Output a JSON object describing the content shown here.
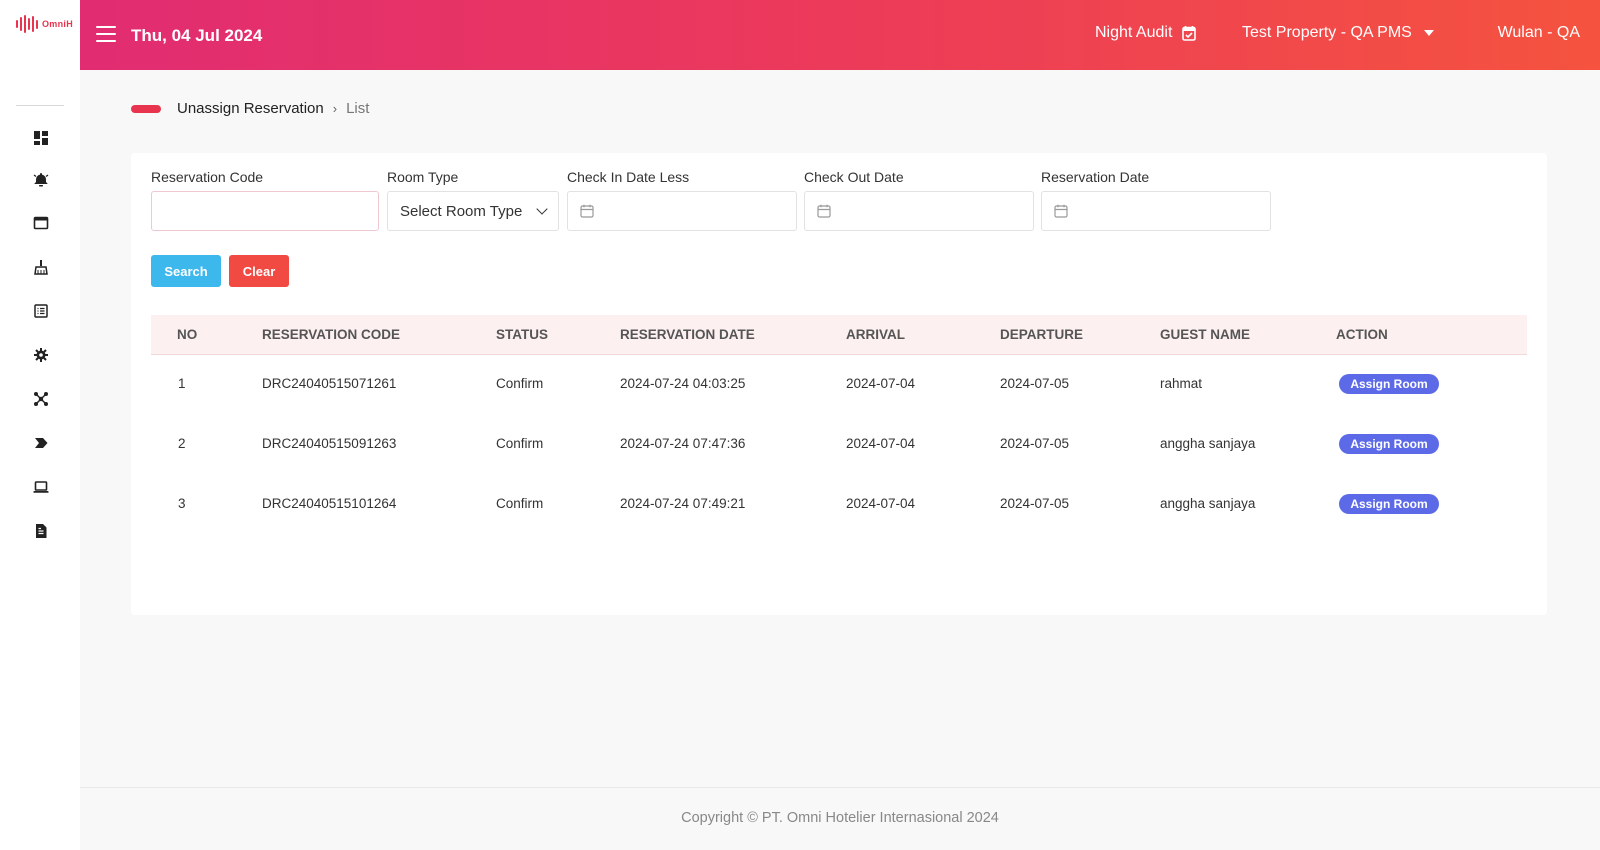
{
  "app": {
    "logo_text": "OmniH"
  },
  "sidebar": {
    "icons": [
      "dashboard-icon",
      "bell-concierge-icon",
      "window-icon",
      "housekeeping-icon",
      "list-icon",
      "settings-icon",
      "network-icon",
      "tag-icon",
      "laptop-icon",
      "report-icon"
    ]
  },
  "header": {
    "date": "Thu, 04 Jul 2024",
    "night_audit": "Night Audit",
    "property": "Test Property - QA PMS",
    "user": "Wulan - QA"
  },
  "breadcrumb": {
    "main": "Unassign Reservation",
    "separator": "›",
    "sub": "List"
  },
  "filters": {
    "reservation_code": {
      "label": "Reservation Code",
      "value": ""
    },
    "room_type": {
      "label": "Room Type",
      "selected": "Select Room Type"
    },
    "check_in": {
      "label": "Check In Date Less",
      "value": ""
    },
    "check_out": {
      "label": "Check Out Date",
      "value": ""
    },
    "reservation_date": {
      "label": "Reservation Date",
      "value": ""
    }
  },
  "buttons": {
    "search": "Search",
    "clear": "Clear"
  },
  "table": {
    "columns": [
      "NO",
      "RESERVATION CODE",
      "STATUS",
      "RESERVATION DATE",
      "ARRIVAL",
      "DEPARTURE",
      "GUEST NAME",
      "ACTION"
    ],
    "rows": [
      {
        "no": "1",
        "code": "DRC24040515071261",
        "status": "Confirm",
        "reservation_date": "2024-07-24 04:03:25",
        "arrival": "2024-07-04",
        "departure": "2024-07-05",
        "guest": "rahmat",
        "action": "Assign Room"
      },
      {
        "no": "2",
        "code": "DRC24040515091263",
        "status": "Confirm",
        "reservation_date": "2024-07-24 07:47:36",
        "arrival": "2024-07-04",
        "departure": "2024-07-05",
        "guest": "anggha sanjaya",
        "action": "Assign Room"
      },
      {
        "no": "3",
        "code": "DRC24040515101264",
        "status": "Confirm",
        "reservation_date": "2024-07-24 07:49:21",
        "arrival": "2024-07-04",
        "departure": "2024-07-05",
        "guest": "anggha sanjaya",
        "action": "Assign Room"
      }
    ]
  },
  "footer": {
    "copyright": "Copyright © PT. Omni Hotelier Internasional 2024"
  },
  "colors": {
    "header_gradient_start": "#e12c72",
    "header_gradient_end": "#f5533f",
    "search_button": "#3cb8ec",
    "clear_button": "#f04a43",
    "assign_button": "#5d6ae8",
    "brand": "#e8344e"
  }
}
